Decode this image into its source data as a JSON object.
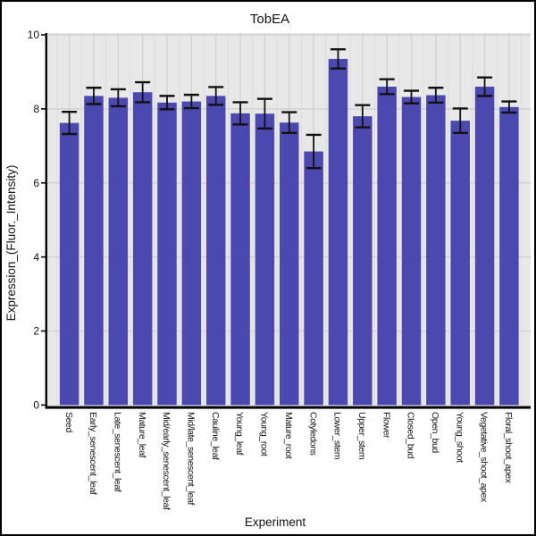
{
  "window": {
    "title": "TobEA"
  },
  "chart_data": {
    "type": "bar",
    "title": "TobEA",
    "xlabel": "Experiment",
    "ylabel": "Expression_(Fluor._Intensity)",
    "ylim": [
      0,
      10
    ],
    "yticks": [
      0,
      2,
      4,
      6,
      8,
      10
    ],
    "grid": "on",
    "legend": "none",
    "bar_color": "#4b48b0",
    "error_bar_color": "#111111",
    "panel_background": "#e8e8e8",
    "major_grid_color": "#d2d2d2",
    "minor_grid_color": "#dcdcdc",
    "axis_color": "#000000",
    "categories": [
      "Seed",
      "Early_senescent_leaf",
      "Late_senescent_leaf",
      "Mature_leaf",
      "Mid/early_senescent_leaf",
      "Mid/late_senescent_leaf",
      "Cauline_leaf",
      "Young_leaf",
      "Young_root",
      "Mature_root",
      "Cotyledons",
      "Lower_stem",
      "Upper_stem",
      "Flower",
      "Closed_bud",
      "Open_bud",
      "Young_shoot",
      "Vegetative_shoot_apex",
      "Floral_shoot_apex"
    ],
    "values": [
      7.62,
      8.35,
      8.3,
      8.45,
      8.17,
      8.2,
      8.35,
      7.88,
      7.87,
      7.63,
      6.85,
      9.35,
      7.8,
      8.6,
      8.32,
      8.37,
      7.68,
      8.6,
      8.05
    ],
    "errors": [
      0.3,
      0.22,
      0.23,
      0.27,
      0.18,
      0.18,
      0.24,
      0.3,
      0.4,
      0.28,
      0.45,
      0.26,
      0.3,
      0.2,
      0.17,
      0.2,
      0.33,
      0.25,
      0.15
    ]
  }
}
